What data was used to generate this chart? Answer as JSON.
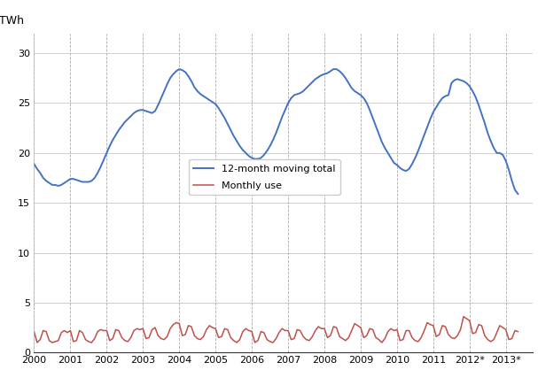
{
  "ylabel": "TWh",
  "xlim": [
    2000,
    2013.75
  ],
  "ylim": [
    0,
    32
  ],
  "yticks": [
    0,
    5,
    10,
    15,
    20,
    25,
    30
  ],
  "xtick_labels": [
    "2000",
    "2001",
    "2002",
    "2003",
    "2004",
    "2005",
    "2006",
    "2007",
    "2008",
    "2009",
    "2010",
    "2011",
    "2012*",
    "2013*"
  ],
  "xtick_positions": [
    2000,
    2001,
    2002,
    2003,
    2004,
    2005,
    2006,
    2007,
    2008,
    2009,
    2010,
    2011,
    2012,
    2013
  ],
  "moving_total_color": "#4472C4",
  "monthly_color": "#C0504D",
  "legend_moving": "12-month moving total",
  "legend_monthly": "Monthly use",
  "background_color": "#FFFFFF",
  "moving_total_x": [
    2000.0,
    2000.083,
    2000.167,
    2000.25,
    2000.333,
    2000.417,
    2000.5,
    2000.583,
    2000.667,
    2000.75,
    2000.833,
    2000.917,
    2001.0,
    2001.083,
    2001.167,
    2001.25,
    2001.333,
    2001.417,
    2001.5,
    2001.583,
    2001.667,
    2001.75,
    2001.833,
    2001.917,
    2002.0,
    2002.083,
    2002.167,
    2002.25,
    2002.333,
    2002.417,
    2002.5,
    2002.583,
    2002.667,
    2002.75,
    2002.833,
    2002.917,
    2003.0,
    2003.083,
    2003.167,
    2003.25,
    2003.333,
    2003.417,
    2003.5,
    2003.583,
    2003.667,
    2003.75,
    2003.833,
    2003.917,
    2004.0,
    2004.083,
    2004.167,
    2004.25,
    2004.333,
    2004.417,
    2004.5,
    2004.583,
    2004.667,
    2004.75,
    2004.833,
    2004.917,
    2005.0,
    2005.083,
    2005.167,
    2005.25,
    2005.333,
    2005.417,
    2005.5,
    2005.583,
    2005.667,
    2005.75,
    2005.833,
    2005.917,
    2006.0,
    2006.083,
    2006.167,
    2006.25,
    2006.333,
    2006.417,
    2006.5,
    2006.583,
    2006.667,
    2006.75,
    2006.833,
    2006.917,
    2007.0,
    2007.083,
    2007.167,
    2007.25,
    2007.333,
    2007.417,
    2007.5,
    2007.583,
    2007.667,
    2007.75,
    2007.833,
    2007.917,
    2008.0,
    2008.083,
    2008.167,
    2008.25,
    2008.333,
    2008.417,
    2008.5,
    2008.583,
    2008.667,
    2008.75,
    2008.833,
    2008.917,
    2009.0,
    2009.083,
    2009.167,
    2009.25,
    2009.333,
    2009.417,
    2009.5,
    2009.583,
    2009.667,
    2009.75,
    2009.833,
    2009.917,
    2010.0,
    2010.083,
    2010.167,
    2010.25,
    2010.333,
    2010.417,
    2010.5,
    2010.583,
    2010.667,
    2010.75,
    2010.833,
    2010.917,
    2011.0,
    2011.083,
    2011.167,
    2011.25,
    2011.333,
    2011.417,
    2011.5,
    2011.583,
    2011.667,
    2011.75,
    2011.833,
    2011.917,
    2012.0,
    2012.083,
    2012.167,
    2012.25,
    2012.333,
    2012.417,
    2012.5,
    2012.583,
    2012.667,
    2012.75,
    2012.833,
    2012.917,
    2013.0,
    2013.083,
    2013.167,
    2013.25,
    2013.333
  ],
  "moving_total_y": [
    18.9,
    18.4,
    18.0,
    17.5,
    17.2,
    17.0,
    16.8,
    16.8,
    16.7,
    16.8,
    17.0,
    17.2,
    17.4,
    17.4,
    17.3,
    17.2,
    17.1,
    17.1,
    17.1,
    17.2,
    17.5,
    18.0,
    18.6,
    19.3,
    20.0,
    20.7,
    21.3,
    21.8,
    22.3,
    22.7,
    23.1,
    23.4,
    23.7,
    24.0,
    24.2,
    24.3,
    24.3,
    24.2,
    24.1,
    24.0,
    24.2,
    24.8,
    25.5,
    26.2,
    26.9,
    27.5,
    27.9,
    28.2,
    28.4,
    28.3,
    28.1,
    27.7,
    27.2,
    26.6,
    26.2,
    25.9,
    25.7,
    25.5,
    25.3,
    25.1,
    24.9,
    24.5,
    24.0,
    23.5,
    22.9,
    22.3,
    21.7,
    21.2,
    20.7,
    20.3,
    20.0,
    19.7,
    19.5,
    19.4,
    19.4,
    19.5,
    19.8,
    20.2,
    20.7,
    21.3,
    22.0,
    22.8,
    23.6,
    24.3,
    25.0,
    25.5,
    25.8,
    25.9,
    26.0,
    26.2,
    26.5,
    26.8,
    27.1,
    27.4,
    27.6,
    27.8,
    27.9,
    28.0,
    28.2,
    28.4,
    28.4,
    28.2,
    27.9,
    27.5,
    27.0,
    26.5,
    26.2,
    26.0,
    25.8,
    25.5,
    25.0,
    24.3,
    23.5,
    22.7,
    21.9,
    21.1,
    20.5,
    20.0,
    19.5,
    19.0,
    18.8,
    18.5,
    18.3,
    18.2,
    18.4,
    18.9,
    19.5,
    20.2,
    21.0,
    21.8,
    22.6,
    23.4,
    24.1,
    24.6,
    25.1,
    25.5,
    25.7,
    25.8,
    27.0,
    27.3,
    27.4,
    27.3,
    27.2,
    27.0,
    26.7,
    26.2,
    25.6,
    24.8,
    23.9,
    23.0,
    22.0,
    21.2,
    20.5,
    20.0,
    20.0,
    19.8,
    19.2,
    18.3,
    17.2,
    16.3,
    15.9
  ],
  "monthly_x": [
    2000.0,
    2000.083,
    2000.167,
    2000.25,
    2000.333,
    2000.417,
    2000.5,
    2000.583,
    2000.667,
    2000.75,
    2000.833,
    2000.917,
    2001.0,
    2001.083,
    2001.167,
    2001.25,
    2001.333,
    2001.417,
    2001.5,
    2001.583,
    2001.667,
    2001.75,
    2001.833,
    2001.917,
    2002.0,
    2002.083,
    2002.167,
    2002.25,
    2002.333,
    2002.417,
    2002.5,
    2002.583,
    2002.667,
    2002.75,
    2002.833,
    2002.917,
    2003.0,
    2003.083,
    2003.167,
    2003.25,
    2003.333,
    2003.417,
    2003.5,
    2003.583,
    2003.667,
    2003.75,
    2003.833,
    2003.917,
    2004.0,
    2004.083,
    2004.167,
    2004.25,
    2004.333,
    2004.417,
    2004.5,
    2004.583,
    2004.667,
    2004.75,
    2004.833,
    2004.917,
    2005.0,
    2005.083,
    2005.167,
    2005.25,
    2005.333,
    2005.417,
    2005.5,
    2005.583,
    2005.667,
    2005.75,
    2005.833,
    2005.917,
    2006.0,
    2006.083,
    2006.167,
    2006.25,
    2006.333,
    2006.417,
    2006.5,
    2006.583,
    2006.667,
    2006.75,
    2006.833,
    2006.917,
    2007.0,
    2007.083,
    2007.167,
    2007.25,
    2007.333,
    2007.417,
    2007.5,
    2007.583,
    2007.667,
    2007.75,
    2007.833,
    2007.917,
    2008.0,
    2008.083,
    2008.167,
    2008.25,
    2008.333,
    2008.417,
    2008.5,
    2008.583,
    2008.667,
    2008.75,
    2008.833,
    2008.917,
    2009.0,
    2009.083,
    2009.167,
    2009.25,
    2009.333,
    2009.417,
    2009.5,
    2009.583,
    2009.667,
    2009.75,
    2009.833,
    2009.917,
    2010.0,
    2010.083,
    2010.167,
    2010.25,
    2010.333,
    2010.417,
    2010.5,
    2010.583,
    2010.667,
    2010.75,
    2010.833,
    2010.917,
    2011.0,
    2011.083,
    2011.167,
    2011.25,
    2011.333,
    2011.417,
    2011.5,
    2011.583,
    2011.667,
    2011.75,
    2011.833,
    2011.917,
    2012.0,
    2012.083,
    2012.167,
    2012.25,
    2012.333,
    2012.417,
    2012.5,
    2012.583,
    2012.667,
    2012.75,
    2012.833,
    2012.917,
    2013.0,
    2013.083,
    2013.167,
    2013.25,
    2013.333
  ],
  "monthly_y": [
    2.1,
    1.0,
    1.3,
    2.2,
    2.1,
    1.2,
    1.0,
    1.1,
    1.2,
    2.0,
    2.2,
    2.0,
    2.2,
    1.1,
    1.2,
    2.2,
    2.0,
    1.3,
    1.1,
    1.0,
    1.4,
    2.1,
    2.3,
    2.2,
    2.2,
    1.2,
    1.4,
    2.3,
    2.2,
    1.5,
    1.2,
    1.1,
    1.5,
    2.2,
    2.4,
    2.3,
    2.4,
    1.4,
    1.5,
    2.3,
    2.5,
    1.7,
    1.4,
    1.3,
    1.6,
    2.4,
    2.8,
    3.0,
    2.9,
    1.7,
    1.8,
    2.7,
    2.6,
    1.7,
    1.4,
    1.3,
    1.6,
    2.3,
    2.7,
    2.5,
    2.4,
    1.5,
    1.6,
    2.4,
    2.3,
    1.5,
    1.2,
    1.0,
    1.3,
    2.1,
    2.4,
    2.2,
    2.1,
    1.0,
    1.2,
    2.1,
    2.0,
    1.3,
    1.1,
    1.0,
    1.4,
    2.0,
    2.4,
    2.2,
    2.2,
    1.3,
    1.4,
    2.3,
    2.2,
    1.6,
    1.3,
    1.2,
    1.6,
    2.2,
    2.6,
    2.4,
    2.4,
    1.5,
    1.7,
    2.6,
    2.5,
    1.6,
    1.4,
    1.2,
    1.5,
    2.2,
    2.9,
    2.7,
    2.5,
    1.5,
    1.7,
    2.4,
    2.3,
    1.5,
    1.3,
    1.0,
    1.4,
    2.1,
    2.4,
    2.2,
    2.3,
    1.2,
    1.3,
    2.2,
    2.2,
    1.5,
    1.2,
    1.1,
    1.5,
    2.2,
    3.0,
    2.8,
    2.7,
    1.6,
    1.8,
    2.7,
    2.6,
    1.8,
    1.5,
    1.4,
    1.7,
    2.3,
    3.6,
    3.4,
    3.2,
    1.9,
    2.0,
    2.8,
    2.7,
    1.7,
    1.3,
    1.1,
    1.3,
    2.0,
    2.7,
    2.5,
    2.3,
    1.3,
    1.4,
    2.2,
    2.1
  ]
}
